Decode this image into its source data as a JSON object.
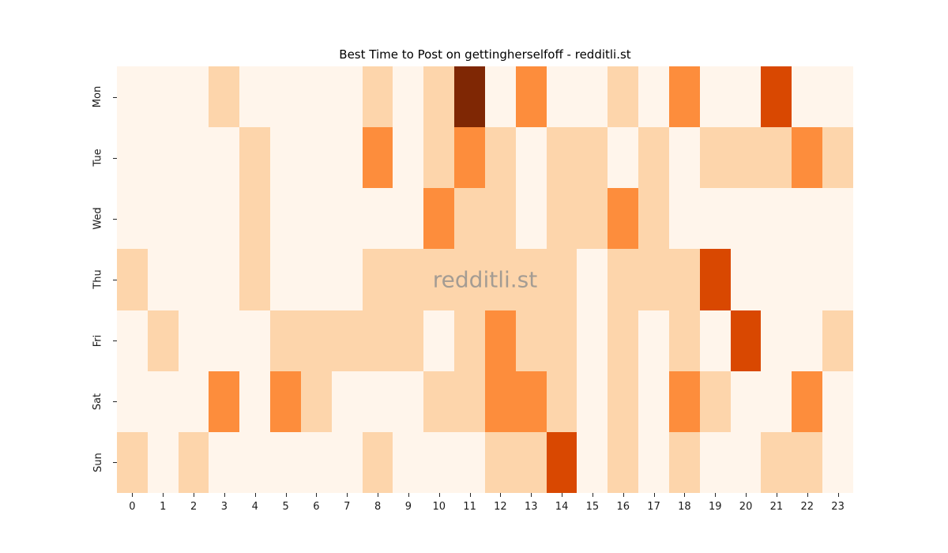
{
  "figure": {
    "title": "Best Time to Post on gettingherselfoff - redditli.st",
    "watermark": "redditli.st"
  },
  "chart_data": {
    "type": "heatmap",
    "title": "Best Time to Post on gettingherselfoff - redditli.st",
    "watermark": "redditli.st",
    "colormap": "Oranges",
    "legend": "none",
    "grid": false,
    "xlabel": "",
    "ylabel": "",
    "x_labels": [
      "0",
      "1",
      "2",
      "3",
      "4",
      "5",
      "6",
      "7",
      "8",
      "9",
      "10",
      "11",
      "12",
      "13",
      "14",
      "15",
      "16",
      "17",
      "18",
      "19",
      "20",
      "21",
      "22",
      "23"
    ],
    "y_labels": [
      "Mon",
      "Tue",
      "Wed",
      "Thu",
      "Fri",
      "Sat",
      "Sun"
    ],
    "value_scale": {
      "min": 0,
      "max": 4
    },
    "palette": {
      "0": "#fff5eb",
      "1": "#fdd5ab",
      "2": "#fd8d3c",
      "3": "#d94801",
      "4": "#7f2704"
    },
    "values": [
      [
        0,
        0,
        0,
        1,
        0,
        0,
        0,
        0,
        1,
        0,
        1,
        4,
        0,
        2,
        0,
        0,
        1,
        0,
        2,
        0,
        0,
        3,
        0,
        0
      ],
      [
        0,
        0,
        0,
        0,
        1,
        0,
        0,
        0,
        2,
        0,
        1,
        2,
        1,
        0,
        1,
        1,
        0,
        1,
        0,
        1,
        1,
        1,
        2,
        1
      ],
      [
        0,
        0,
        0,
        0,
        1,
        0,
        0,
        0,
        0,
        0,
        2,
        1,
        1,
        0,
        1,
        1,
        2,
        1,
        0,
        0,
        0,
        0,
        0,
        0
      ],
      [
        1,
        0,
        0,
        0,
        1,
        0,
        0,
        0,
        1,
        1,
        1,
        1,
        1,
        1,
        1,
        0,
        1,
        1,
        1,
        3,
        0,
        0,
        0,
        0
      ],
      [
        0,
        1,
        0,
        0,
        0,
        1,
        1,
        1,
        1,
        1,
        0,
        1,
        2,
        1,
        1,
        0,
        1,
        0,
        1,
        0,
        3,
        0,
        0,
        1
      ],
      [
        0,
        0,
        0,
        2,
        0,
        2,
        1,
        0,
        0,
        0,
        1,
        1,
        2,
        2,
        1,
        0,
        1,
        0,
        2,
        1,
        0,
        0,
        2,
        0
      ],
      [
        1,
        0,
        1,
        0,
        0,
        0,
        0,
        0,
        1,
        0,
        0,
        0,
        1,
        1,
        3,
        0,
        1,
        0,
        1,
        0,
        0,
        1,
        1,
        0
      ]
    ]
  }
}
